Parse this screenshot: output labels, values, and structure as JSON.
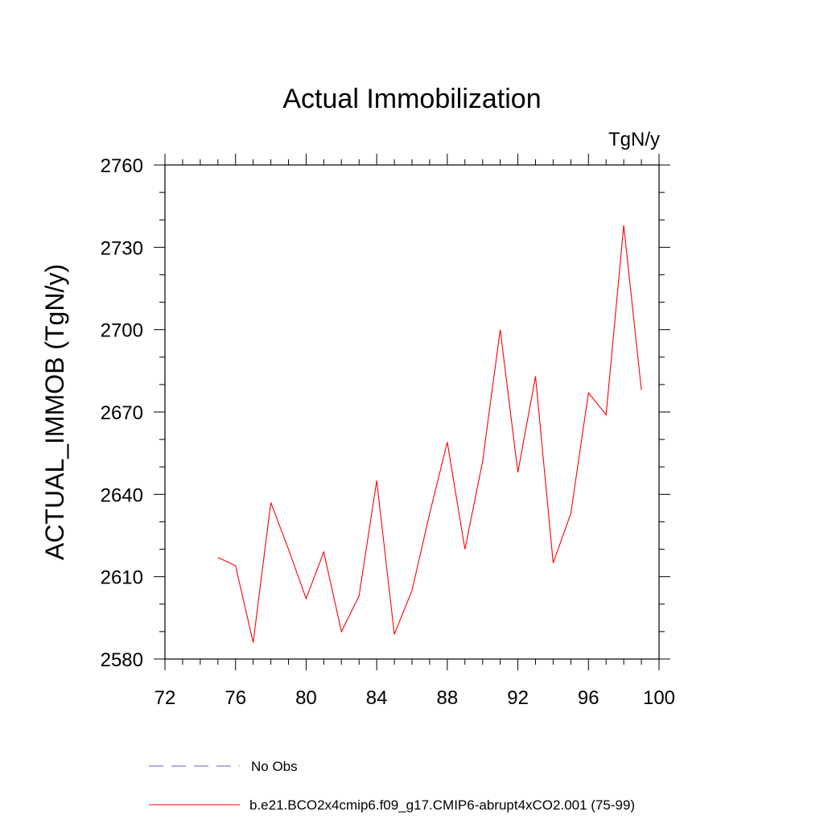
{
  "chart_data": {
    "type": "line",
    "title": "Actual Immobilization",
    "units": "TgN/y",
    "xlabel": "",
    "ylabel": "ACTUAL_IMMOB  (TgN/y)",
    "xlim": [
      72,
      100
    ],
    "ylim": [
      2580,
      2760
    ],
    "xticks": [
      72,
      76,
      80,
      84,
      88,
      92,
      96,
      100
    ],
    "yticks": [
      2580,
      2610,
      2640,
      2670,
      2700,
      2730,
      2760
    ],
    "series": [
      {
        "name": "b.e21.BCO2x4cmip6.f09_g17.CMIP6-abrupt4xCO2.001 (75-99)",
        "color": "#ff0000",
        "x": [
          75,
          76,
          77,
          78,
          79,
          80,
          81,
          82,
          83,
          84,
          85,
          86,
          87,
          88,
          89,
          90,
          91,
          92,
          93,
          94,
          95,
          96,
          97,
          98,
          99
        ],
        "values": [
          2617,
          2614,
          2586,
          2637,
          2620,
          2602,
          2619,
          2590,
          2603,
          2645,
          2589,
          2605,
          2633,
          2659,
          2620,
          2652,
          2700,
          2648,
          2683,
          2615,
          2633,
          2677,
          2669,
          2738,
          2678
        ]
      }
    ],
    "legend": [
      {
        "label": "No Obs",
        "style": "dashed",
        "color": "#6a5acd"
      },
      {
        "label": "b.e21.BCO2x4cmip6.f09_g17.CMIP6-abrupt4xCO2.001 (75-99)",
        "style": "solid",
        "color": "#ff0000"
      }
    ],
    "legend_position": "bottom-left",
    "grid": false
  }
}
